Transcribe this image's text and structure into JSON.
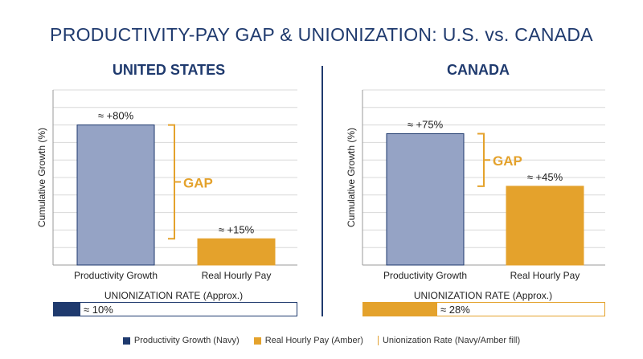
{
  "title": "PRODUCTIVITY-PAY GAP & UNIONIZATION: U.S. vs. CANADA",
  "colors": {
    "navy": "#1f3a6e",
    "bar_navy": "#95a3c5",
    "amber": "#e4a22c",
    "grid": "#d8d8d8"
  },
  "chart_data": [
    {
      "type": "bar",
      "panel": "UNITED STATES",
      "ylabel": "Cumulative Growth (%)",
      "categories": [
        "Productivity Growth",
        "Real Hourly Pay"
      ],
      "values": [
        80,
        15
      ],
      "data_labels": [
        "≈ +80%",
        "≈ +15%"
      ],
      "ylim": [
        0,
        100
      ],
      "grid": true,
      "gap_label": "GAP",
      "unionization": {
        "label": "UNIONIZATION RATE (Approx.)",
        "value": 10,
        "text": "≈ 10%"
      }
    },
    {
      "type": "bar",
      "panel": "CANADA",
      "ylabel": "Cumulative Growth (%)",
      "categories": [
        "Productivity Growth",
        "Real Hourly Pay"
      ],
      "values": [
        75,
        45
      ],
      "data_labels": [
        "≈ +75%",
        "≈ +45%"
      ],
      "ylim": [
        0,
        100
      ],
      "grid": true,
      "gap_label": "GAP",
      "unionization": {
        "label": "UNIONIZATION RATE (Approx.)",
        "value": 28,
        "text": "≈ 28%"
      }
    }
  ],
  "legend": [
    {
      "label": "Productivity Growth (Navy)",
      "kind": "navy-square"
    },
    {
      "label": "Real Hourly Pay (Amber)",
      "kind": "amber-square"
    },
    {
      "label": "Unionization Rate (Navy/Amber fill)",
      "kind": "amber-line"
    }
  ]
}
